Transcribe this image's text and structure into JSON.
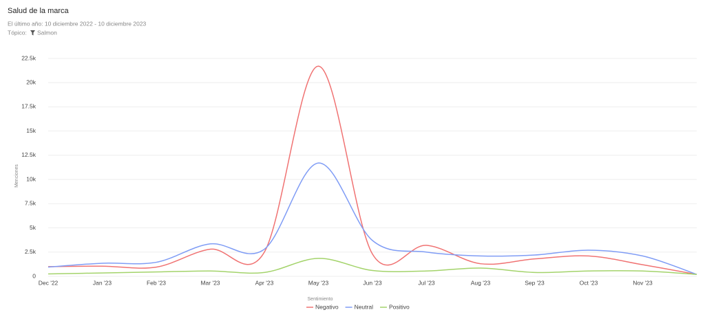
{
  "header": {
    "title": "Salud de la marca",
    "subtitle": "El último año: 10 diciembre 2022 - 10 diciembre 2023",
    "filter_label": "Tópico:",
    "filter_value": "Salmon"
  },
  "chart_data": {
    "type": "line",
    "y_label": "Menciones",
    "legend_title": "Sentimiento",
    "categories": [
      "Dec '22",
      "Jan '23",
      "Feb '23",
      "Mar '23",
      "Apr '23",
      "May '23",
      "Jun '23",
      "Jul '23",
      "Aug '23",
      "Sep '23",
      "Oct '23",
      "Nov '23",
      null
    ],
    "series": [
      {
        "name": "Negativo",
        "color": "#f07272",
        "values": [
          1000,
          1050,
          950,
          2800,
          2500,
          21700,
          2300,
          3200,
          1300,
          1800,
          2100,
          1200,
          200
        ]
      },
      {
        "name": "Neutral",
        "color": "#7f9cf5",
        "values": [
          950,
          1350,
          1450,
          3350,
          2800,
          11700,
          3700,
          2500,
          2100,
          2200,
          2700,
          2100,
          200
        ]
      },
      {
        "name": "Positivo",
        "color": "#a3d36a",
        "values": [
          250,
          350,
          450,
          550,
          400,
          1850,
          600,
          550,
          850,
          400,
          550,
          550,
          200
        ]
      }
    ],
    "ylim": [
      0,
      22500
    ],
    "yticks": [
      0,
      {
        "value": 2500,
        "label": "2.5k"
      },
      {
        "value": 5000,
        "label": "5k"
      },
      {
        "value": 7500,
        "label": "7.5k"
      },
      {
        "value": 10000,
        "label": "10k"
      },
      {
        "value": 12500,
        "label": "12.5k"
      },
      {
        "value": 15000,
        "label": "15k"
      },
      {
        "value": 17500,
        "label": "17.5k"
      },
      {
        "value": 20000,
        "label": "20k"
      },
      {
        "value": 22500,
        "label": "22.5k"
      }
    ],
    "grid": true
  }
}
